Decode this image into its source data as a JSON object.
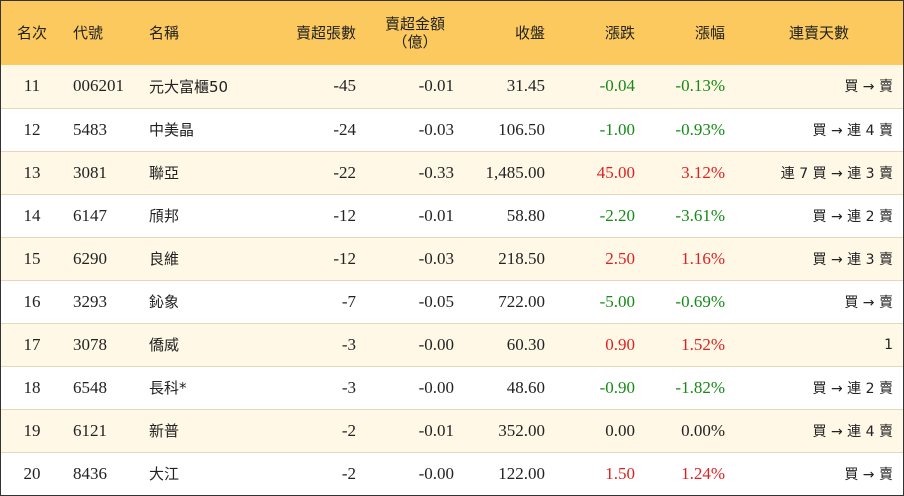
{
  "colors": {
    "header_bg": "#fbc95e",
    "row_odd_bg": "#fff8e6",
    "up": "#e01f1f",
    "down": "#168a16"
  },
  "headers": {
    "rank": "名次",
    "code": "代號",
    "name": "名稱",
    "lots": "賣超張數",
    "amount_line1": "賣超金額",
    "amount_line2": "（億）",
    "close": "收盤",
    "change": "漲跌",
    "pct": "漲幅",
    "days": "連賣天數"
  },
  "rows": [
    {
      "rank": "11",
      "code": "006201",
      "name": "元大富櫃50",
      "lots": "-45",
      "amount": "-0.01",
      "close": "31.45",
      "change": "-0.04",
      "pct": "-0.13%",
      "dir": "down",
      "days": "買 → 賣"
    },
    {
      "rank": "12",
      "code": "5483",
      "name": "中美晶",
      "lots": "-24",
      "amount": "-0.03",
      "close": "106.50",
      "change": "-1.00",
      "pct": "-0.93%",
      "dir": "down",
      "days": "買 → 連 4 賣"
    },
    {
      "rank": "13",
      "code": "3081",
      "name": "聯亞",
      "lots": "-22",
      "amount": "-0.33",
      "close": "1,485.00",
      "change": "45.00",
      "pct": "3.12%",
      "dir": "up",
      "days": "連 7 買 → 連 3 賣"
    },
    {
      "rank": "14",
      "code": "6147",
      "name": "頎邦",
      "lots": "-12",
      "amount": "-0.01",
      "close": "58.80",
      "change": "-2.20",
      "pct": "-3.61%",
      "dir": "down",
      "days": "買 → 連 2 賣"
    },
    {
      "rank": "15",
      "code": "6290",
      "name": "良維",
      "lots": "-12",
      "amount": "-0.03",
      "close": "218.50",
      "change": "2.50",
      "pct": "1.16%",
      "dir": "up",
      "days": "買 → 連 3 賣"
    },
    {
      "rank": "16",
      "code": "3293",
      "name": "鈊象",
      "lots": "-7",
      "amount": "-0.05",
      "close": "722.00",
      "change": "-5.00",
      "pct": "-0.69%",
      "dir": "down",
      "days": "買 → 賣"
    },
    {
      "rank": "17",
      "code": "3078",
      "name": "僑威",
      "lots": "-3",
      "amount": "-0.00",
      "close": "60.30",
      "change": "0.90",
      "pct": "1.52%",
      "dir": "up",
      "days": "1"
    },
    {
      "rank": "18",
      "code": "6548",
      "name": "長科*",
      "lots": "-3",
      "amount": "-0.00",
      "close": "48.60",
      "change": "-0.90",
      "pct": "-1.82%",
      "dir": "down",
      "days": "買 → 連 2 賣"
    },
    {
      "rank": "19",
      "code": "6121",
      "name": "新普",
      "lots": "-2",
      "amount": "-0.01",
      "close": "352.00",
      "change": "0.00",
      "pct": "0.00%",
      "dir": "flat",
      "days": "買 → 連 4 賣"
    },
    {
      "rank": "20",
      "code": "8436",
      "name": "大江",
      "lots": "-2",
      "amount": "-0.00",
      "close": "122.00",
      "change": "1.50",
      "pct": "1.24%",
      "dir": "up",
      "days": "買 → 賣"
    }
  ]
}
